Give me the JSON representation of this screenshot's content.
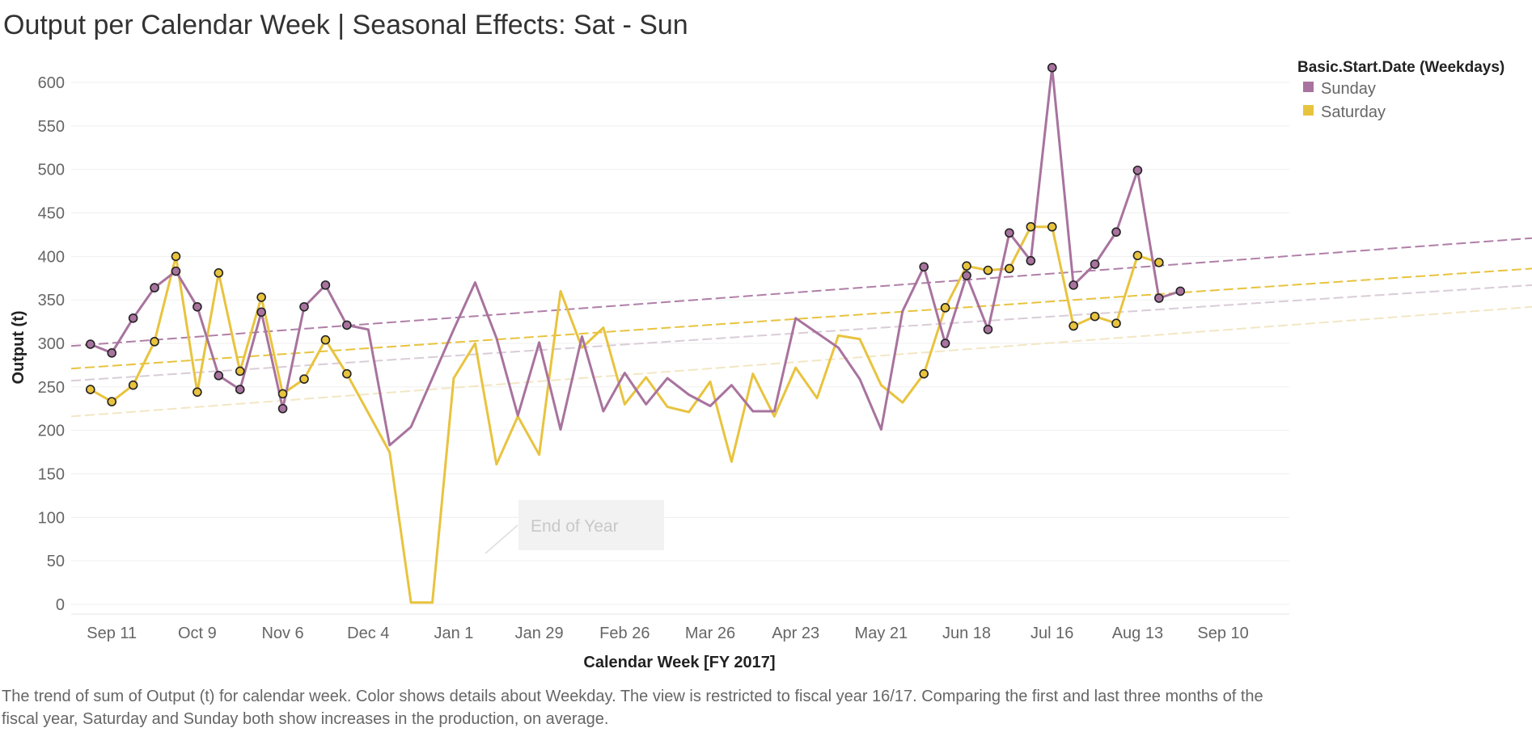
{
  "title": "Output per Calendar Week | Seasonal Effects: Sat - Sun",
  "caption": "The trend of sum of Output (t) for calendar week.  Color shows details about Weekday. The view is restricted to fiscal year 16/17. Comparing the first and last three months of the fiscal year, Saturday and Sunday both show increases in the production, on average.",
  "colors": {
    "sunday": "#a8739e",
    "saturday": "#e8c33e"
  },
  "chart_data": {
    "type": "line",
    "xlabel": "Calendar Week [FY 2017]",
    "ylabel": "Output (t)",
    "ylim": [
      0,
      650
    ],
    "yticks": [
      0,
      50,
      100,
      150,
      200,
      250,
      300,
      350,
      400,
      450,
      500,
      550,
      600
    ],
    "xlim": [
      -0.9,
      56.1
    ],
    "x_tick_labels": [
      {
        "label": "Sep 11",
        "week": 1
      },
      {
        "label": "Oct 9",
        "week": 5
      },
      {
        "label": "Nov 6",
        "week": 9
      },
      {
        "label": "Dec 4",
        "week": 13
      },
      {
        "label": "Jan 1",
        "week": 17
      },
      {
        "label": "Jan 29",
        "week": 21
      },
      {
        "label": "Feb 26",
        "week": 25
      },
      {
        "label": "Mar 26",
        "week": 29
      },
      {
        "label": "Apr 23",
        "week": 33
      },
      {
        "label": "May 21",
        "week": 37
      },
      {
        "label": "Jun 18",
        "week": 41
      },
      {
        "label": "Jul 16",
        "week": 45
      },
      {
        "label": "Aug 13",
        "week": 49
      },
      {
        "label": "Sep 10",
        "week": 53
      }
    ],
    "legend": {
      "title": "Basic.Start.Date (Weekdays)",
      "position": "top-right"
    },
    "series": [
      {
        "name": "Sunday",
        "color": "#a8739e",
        "x": [
          0,
          1,
          2,
          3,
          4,
          5,
          6,
          7,
          8,
          9,
          10,
          11,
          12,
          13,
          14,
          15,
          16,
          17,
          18,
          19,
          20,
          21,
          22,
          23,
          24,
          25,
          26,
          27,
          28,
          29,
          30,
          31,
          32,
          33,
          34,
          35,
          36,
          37,
          38,
          39,
          40,
          41,
          42,
          43,
          44,
          45,
          46,
          47,
          48,
          49,
          50,
          51
        ],
        "values": [
          299,
          289,
          329,
          364,
          383,
          342,
          263,
          247,
          336,
          225,
          342,
          367,
          321,
          316,
          183,
          204,
          260,
          316,
          370,
          306,
          217,
          301,
          201,
          308,
          222,
          266,
          230,
          260,
          241,
          228,
          252,
          222,
          222,
          329,
          312,
          295,
          259,
          201,
          337,
          388,
          300,
          378,
          316,
          427,
          395,
          617,
          367,
          391,
          428,
          499,
          352,
          360
        ],
        "markers": [
          0,
          1,
          2,
          3,
          4,
          5,
          6,
          7,
          8,
          9,
          10,
          11,
          12,
          39,
          40,
          41,
          42,
          43,
          44,
          45,
          46,
          47,
          48,
          49,
          50,
          51
        ]
      },
      {
        "name": "Saturday",
        "color": "#e8c33e",
        "x": [
          0,
          1,
          2,
          3,
          4,
          5,
          6,
          7,
          8,
          9,
          10,
          11,
          12,
          13,
          14,
          15,
          16,
          17,
          18,
          19,
          20,
          21,
          22,
          23,
          24,
          25,
          26,
          27,
          28,
          29,
          30,
          31,
          32,
          33,
          34,
          35,
          36,
          37,
          38,
          39,
          40,
          41,
          42,
          43,
          44,
          45,
          46,
          47,
          48,
          49,
          50
        ],
        "values": [
          247,
          233,
          252,
          302,
          400,
          244,
          381,
          268,
          353,
          242,
          259,
          304,
          265,
          220,
          175,
          2,
          2,
          260,
          300,
          161,
          216,
          172,
          360,
          295,
          318,
          230,
          261,
          227,
          221,
          256,
          164,
          265,
          216,
          272,
          237,
          309,
          305,
          252,
          232,
          265,
          341,
          389,
          384,
          386,
          434,
          434,
          320,
          331,
          323,
          401,
          393
        ],
        "markers": [
          0,
          1,
          2,
          3,
          4,
          5,
          6,
          7,
          8,
          9,
          10,
          11,
          12,
          39,
          40,
          41,
          42,
          43,
          44,
          45,
          46,
          47,
          48,
          49,
          50
        ]
      }
    ],
    "trend_lines": [
      {
        "series": "Sunday",
        "y_start": 297,
        "y_end": 421,
        "color": "#b07fa8",
        "opacity": 1.0
      },
      {
        "series": "Saturday",
        "y_start": 271,
        "y_end": 386,
        "color": "#e8c33e",
        "opacity": 1.0
      },
      {
        "series": "Sunday",
        "y_start": 257,
        "y_end": 367,
        "color": "#d9ccd7",
        "opacity": 1.0
      },
      {
        "series": "Saturday",
        "y_start": 216,
        "y_end": 342,
        "color": "#f2e6c4",
        "opacity": 1.0
      }
    ],
    "annotation": {
      "text": "End of Year",
      "at_week": 15.5,
      "at_value": 2
    }
  }
}
